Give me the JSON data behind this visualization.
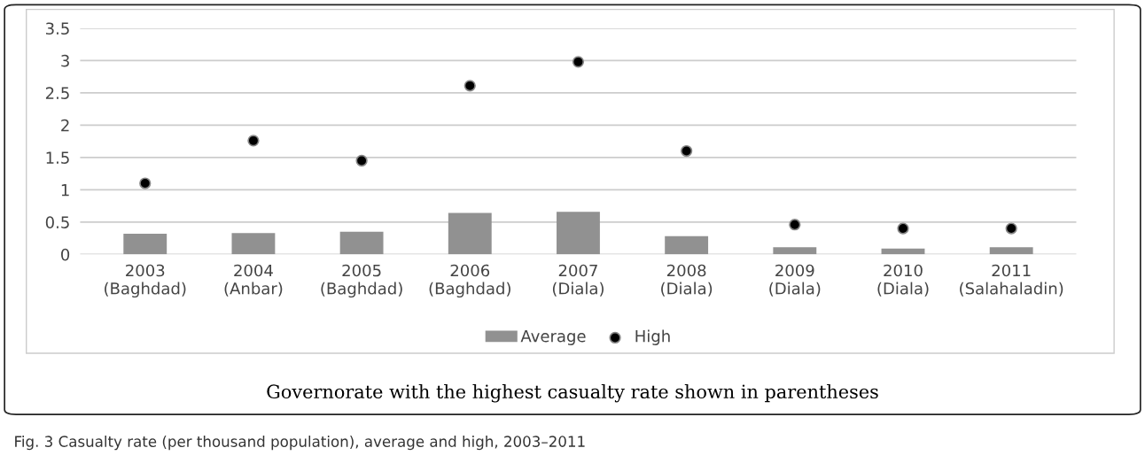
{
  "chart_data": {
    "type": "bar",
    "categories": [
      "2003\n(Baghdad)",
      "2004\n(Anbar)",
      "2005\n(Baghdad)",
      "2006\n(Baghdad)",
      "2007\n(Diala)",
      "2008\n(Diala)",
      "2009\n(Diala)",
      "2010\n(Diala)",
      "2011\n(Salahaladin)"
    ],
    "series": [
      {
        "name": "Average",
        "color": "#919191",
        "values": [
          0.32,
          0.33,
          0.35,
          0.64,
          0.66,
          0.28,
          0.11,
          0.09,
          0.11
        ]
      },
      {
        "name": "High",
        "type": "scatter",
        "color": "#000000",
        "marker": "circle",
        "values": [
          1.1,
          1.76,
          1.45,
          2.61,
          2.98,
          1.6,
          0.46,
          0.4,
          0.4
        ]
      }
    ],
    "ylim": [
      0,
      3.5
    ],
    "yticks": [
      0,
      0.5,
      1,
      1.5,
      2,
      2.5,
      3,
      3.5
    ],
    "grid": "y",
    "legend": "bottom",
    "annotations": [
      "Governorate with the highest casualty rate shown in parentheses",
      "Fig. 3 Casualty rate (per thousand population), average and high, 2003–2011"
    ]
  }
}
